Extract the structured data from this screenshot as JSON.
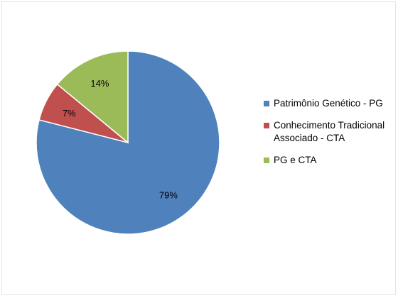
{
  "chart_data": {
    "type": "pie",
    "start_angle_deg": 0,
    "direction": "clockwise",
    "slices": [
      {
        "label": "Patrimônio Genético - PG",
        "value": 79,
        "display": "79%",
        "color": "#4F81BD"
      },
      {
        "label": "Conhecimento Tradicional Associado - CTA",
        "value": 7,
        "display": "7%",
        "color": "#C0504D"
      },
      {
        "label": "PG e CTA",
        "value": 14,
        "display": "14%",
        "color": "#9BBB59"
      }
    ],
    "legend": {
      "position": "right",
      "items": [
        {
          "lines": [
            "Patrimônio Genético - PG"
          ],
          "color": "#4F81BD"
        },
        {
          "lines": [
            "Conhecimento Tradicional",
            "Associado - CTA"
          ],
          "color": "#C0504D"
        },
        {
          "lines": [
            "PG e CTA"
          ],
          "color": "#9BBB59"
        }
      ]
    }
  }
}
